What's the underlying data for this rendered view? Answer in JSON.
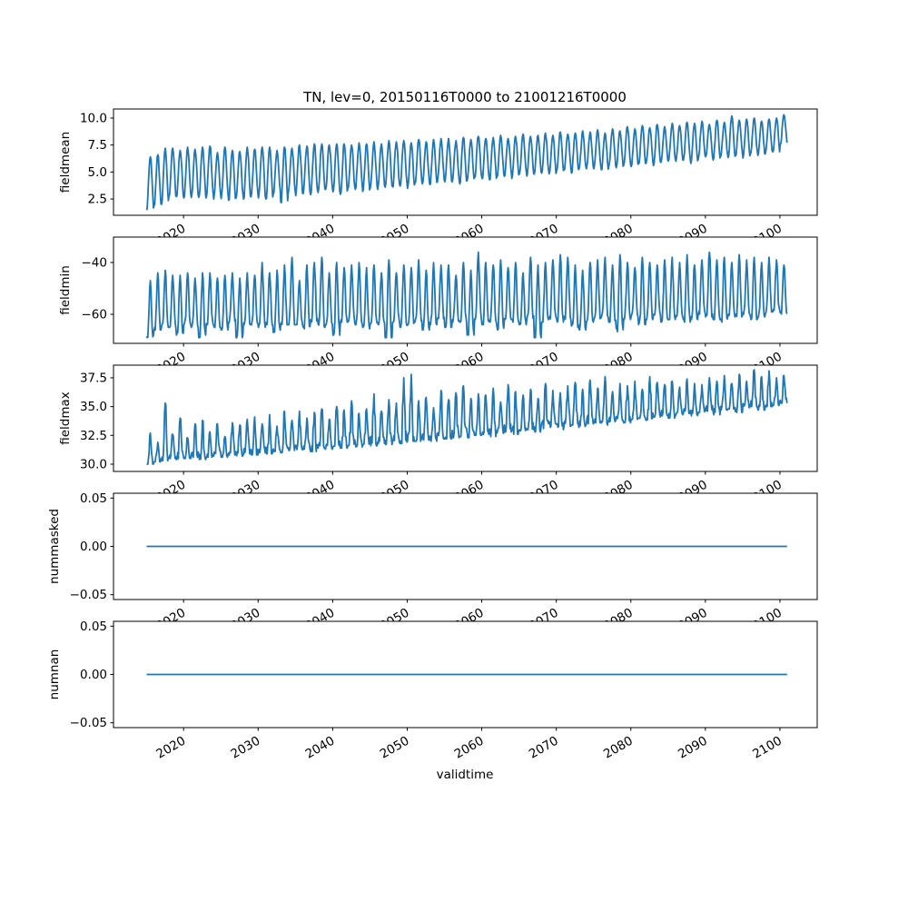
{
  "chart_data": {
    "type": "line",
    "title": "TN, lev=0, 20150116T0000 to 21001216T0000",
    "xlabel": "validtime",
    "x_range_years": [
      2010.6,
      2105.0
    ],
    "time_start": "2015-01-16",
    "time_end": "2100-12-16",
    "time_step": "monthly",
    "line_color": "#1f77b4",
    "xticks": [
      {
        "value": 2020,
        "label": "2020"
      },
      {
        "value": 2030,
        "label": "2030"
      },
      {
        "value": 2040,
        "label": "2040"
      },
      {
        "value": 2050,
        "label": "2050"
      },
      {
        "value": 2060,
        "label": "2060"
      },
      {
        "value": 2070,
        "label": "2070"
      },
      {
        "value": 2080,
        "label": "2080"
      },
      {
        "value": 2090,
        "label": "2090"
      },
      {
        "value": 2100,
        "label": "2100"
      }
    ],
    "panels": [
      {
        "ylabel": "fieldmean",
        "ylim": [
          0.99,
          10.84
        ],
        "yticks": [
          {
            "value": 2.5,
            "label": "2.5"
          },
          {
            "value": 5.0,
            "label": "5.0"
          },
          {
            "value": 7.5,
            "label": "7.5"
          },
          {
            "value": 10.0,
            "label": "10.0"
          }
        ],
        "series": {
          "name": "fieldmean",
          "years_from": 2015,
          "annual_peaks": [
            6.4,
            6.6,
            7.2,
            7.2,
            7.0,
            7.3,
            7.1,
            7.3,
            7.4,
            6.8,
            7.3,
            7.0,
            6.9,
            7.3,
            7.1,
            7.3,
            7.3,
            7.0,
            7.3,
            7.2,
            7.5,
            7.4,
            7.6,
            7.6,
            7.5,
            7.6,
            7.6,
            7.5,
            7.7,
            7.6,
            7.8,
            7.6,
            7.9,
            7.8,
            7.9,
            7.7,
            8.0,
            7.8,
            8.0,
            8.1,
            8.1,
            7.9,
            8.2,
            8.0,
            8.3,
            8.1,
            8.2,
            8.4,
            8.1,
            8.3,
            8.5,
            8.3,
            8.4,
            8.6,
            8.4,
            8.7,
            8.5,
            8.6,
            8.8,
            8.7,
            8.9,
            8.6,
            9.0,
            8.8,
            9.2,
            9.0,
            9.3,
            9.1,
            9.4,
            9.2,
            9.5,
            9.3,
            9.6,
            9.5,
            9.7,
            9.4,
            9.8,
            9.6,
            10.2,
            9.8,
            9.9,
            10.0,
            9.7,
            9.9,
            10.0,
            10.3
          ],
          "annual_troughs": [
            1.4,
            1.8,
            2.0,
            2.6,
            2.7,
            2.6,
            2.6,
            2.5,
            2.6,
            2.5,
            2.5,
            2.3,
            2.6,
            2.5,
            2.7,
            2.6,
            2.4,
            2.9,
            2.0,
            3.0,
            2.8,
            3.0,
            2.9,
            3.1,
            3.3,
            3.0,
            2.8,
            3.3,
            3.4,
            3.2,
            3.5,
            3.4,
            3.6,
            3.5,
            3.7,
            3.4,
            3.8,
            3.9,
            3.7,
            4.0,
            4.0,
            4.1,
            3.9,
            4.2,
            4.4,
            4.3,
            4.2,
            4.5,
            4.6,
            4.4,
            4.7,
            4.6,
            4.8,
            4.9,
            4.7,
            5.0,
            5.1,
            4.9,
            5.2,
            5.3,
            5.3,
            5.1,
            5.5,
            5.4,
            5.6,
            5.5,
            5.7,
            5.8,
            5.6,
            5.9,
            5.9,
            6.0,
            6.1,
            5.8,
            6.2,
            6.3,
            6.1,
            6.4,
            6.2,
            6.5,
            6.3,
            6.6,
            6.5,
            6.7,
            6.8,
            7.5
          ]
        }
      },
      {
        "ylabel": "fieldmin",
        "ylim": [
          -71.2,
          -30.2
        ],
        "yticks": [
          {
            "value": -60,
            "label": "−60"
          },
          {
            "value": -40,
            "label": "−40"
          }
        ],
        "series": {
          "name": "fieldmin",
          "years_from": 2015,
          "annual_peaks": [
            -47,
            -44,
            -43,
            -45,
            -45,
            -44,
            -46,
            -44,
            -44,
            -46,
            -45,
            -44,
            -46,
            -44,
            -45,
            -40,
            -44,
            -43,
            -41,
            -38,
            -47,
            -41,
            -40,
            -38,
            -44,
            -40,
            -42,
            -41,
            -40,
            -42,
            -41,
            -44,
            -39,
            -44,
            -41,
            -42,
            -39,
            -43,
            -40,
            -41,
            -41,
            -45,
            -40,
            -43,
            -36,
            -40,
            -41,
            -39,
            -42,
            -40,
            -44,
            -38,
            -41,
            -40,
            -39,
            -37,
            -38,
            -41,
            -43,
            -40,
            -39,
            -38,
            -41,
            -37,
            -40,
            -42,
            -38,
            -40,
            -41,
            -39,
            -38,
            -40,
            -37,
            -41,
            -39,
            -36,
            -39,
            -38,
            -40,
            -37,
            -39,
            -38,
            -40,
            -38,
            -39,
            -41
          ],
          "annual_troughs": [
            -69,
            -66,
            -65,
            -65,
            -68,
            -64,
            -65,
            -69,
            -64,
            -65,
            -66,
            -63,
            -69,
            -64,
            -64,
            -65,
            -64,
            -67,
            -64,
            -64,
            -64,
            -66,
            -63,
            -65,
            -64,
            -68,
            -63,
            -63,
            -64,
            -66,
            -64,
            -64,
            -69,
            -63,
            -65,
            -64,
            -63,
            -66,
            -64,
            -62,
            -65,
            -63,
            -63,
            -68,
            -62,
            -64,
            -63,
            -66,
            -62,
            -63,
            -64,
            -62,
            -69,
            -63,
            -62,
            -63,
            -62,
            -65,
            -66,
            -63,
            -62,
            -61,
            -63,
            -67,
            -62,
            -61,
            -64,
            -62,
            -61,
            -63,
            -62,
            -61,
            -63,
            -62,
            -60,
            -61,
            -62,
            -63,
            -61,
            -61,
            -60,
            -62,
            -61,
            -60,
            -59,
            -60
          ]
        }
      },
      {
        "ylabel": "fieldmax",
        "ylim": [
          29.37,
          38.6
        ],
        "yticks": [
          {
            "value": 30.0,
            "label": "30.0"
          },
          {
            "value": 32.5,
            "label": "32.5"
          },
          {
            "value": 35.0,
            "label": "35.0"
          },
          {
            "value": 37.5,
            "label": "37.5"
          }
        ],
        "series": {
          "name": "fieldmax",
          "years_from": 2015,
          "annual_peaks": [
            32.7,
            31.9,
            35.3,
            32.6,
            34.0,
            32.3,
            33.5,
            33.8,
            32.8,
            33.5,
            32.4,
            33.6,
            33.4,
            33.9,
            34.1,
            33.5,
            34.3,
            33.3,
            34.6,
            33.8,
            34.6,
            34.0,
            34.5,
            34.8,
            33.9,
            35.0,
            34.7,
            35.5,
            34.4,
            34.8,
            36.1,
            34.6,
            35.6,
            35.3,
            37.5,
            37.8,
            35.5,
            35.8,
            34.9,
            36.4,
            35.6,
            36.2,
            36.8,
            35.7,
            36.1,
            36.0,
            36.6,
            35.4,
            36.9,
            36.3,
            36.0,
            36.5,
            35.7,
            37.0,
            36.4,
            36.2,
            36.8,
            37.1,
            36.5,
            37.3,
            36.6,
            37.6,
            36.3,
            37.0,
            36.8,
            37.2,
            36.5,
            37.6,
            37.1,
            36.9,
            37.2,
            36.7,
            37.4,
            37.0,
            36.9,
            37.5,
            37.2,
            37.7,
            37.0,
            37.8,
            37.2,
            38.2,
            37.6,
            38.1,
            37.5,
            37.7
          ],
          "annual_troughs": [
            30.0,
            30.2,
            30.3,
            30.5,
            30.4,
            30.5,
            30.6,
            30.4,
            30.6,
            30.7,
            30.6,
            30.8,
            30.7,
            30.9,
            30.8,
            31.0,
            30.9,
            31.1,
            31.0,
            31.2,
            31.2,
            31.3,
            31.1,
            31.4,
            31.3,
            31.5,
            31.4,
            31.6,
            31.5,
            31.7,
            31.6,
            31.8,
            31.7,
            31.9,
            31.8,
            32.0,
            32.0,
            32.1,
            32.0,
            32.2,
            32.2,
            32.3,
            32.4,
            32.3,
            32.5,
            32.6,
            32.4,
            32.7,
            32.8,
            32.6,
            32.9,
            33.0,
            32.8,
            33.1,
            33.2,
            33.0,
            33.3,
            33.4,
            33.2,
            33.5,
            33.6,
            33.4,
            33.7,
            33.8,
            33.6,
            33.9,
            34.0,
            33.8,
            34.1,
            34.2,
            34.0,
            34.3,
            34.4,
            34.2,
            34.5,
            34.6,
            34.3,
            34.7,
            34.8,
            34.5,
            34.9,
            35.0,
            34.7,
            35.0,
            35.1,
            35.3
          ]
        }
      },
      {
        "ylabel": "nummasked",
        "ylim": [
          -0.055,
          0.055
        ],
        "yticks": [
          {
            "value": -0.05,
            "label": "−0.05"
          },
          {
            "value": 0.0,
            "label": "0.00"
          },
          {
            "value": 0.05,
            "label": "0.05"
          }
        ],
        "series": {
          "name": "nummasked",
          "constant": 0.0
        }
      },
      {
        "ylabel": "numnan",
        "ylim": [
          -0.055,
          0.055
        ],
        "yticks": [
          {
            "value": -0.05,
            "label": "−0.05"
          },
          {
            "value": 0.0,
            "label": "0.00"
          },
          {
            "value": 0.05,
            "label": "0.05"
          }
        ],
        "series": {
          "name": "numnan",
          "constant": 0.0
        }
      }
    ]
  }
}
